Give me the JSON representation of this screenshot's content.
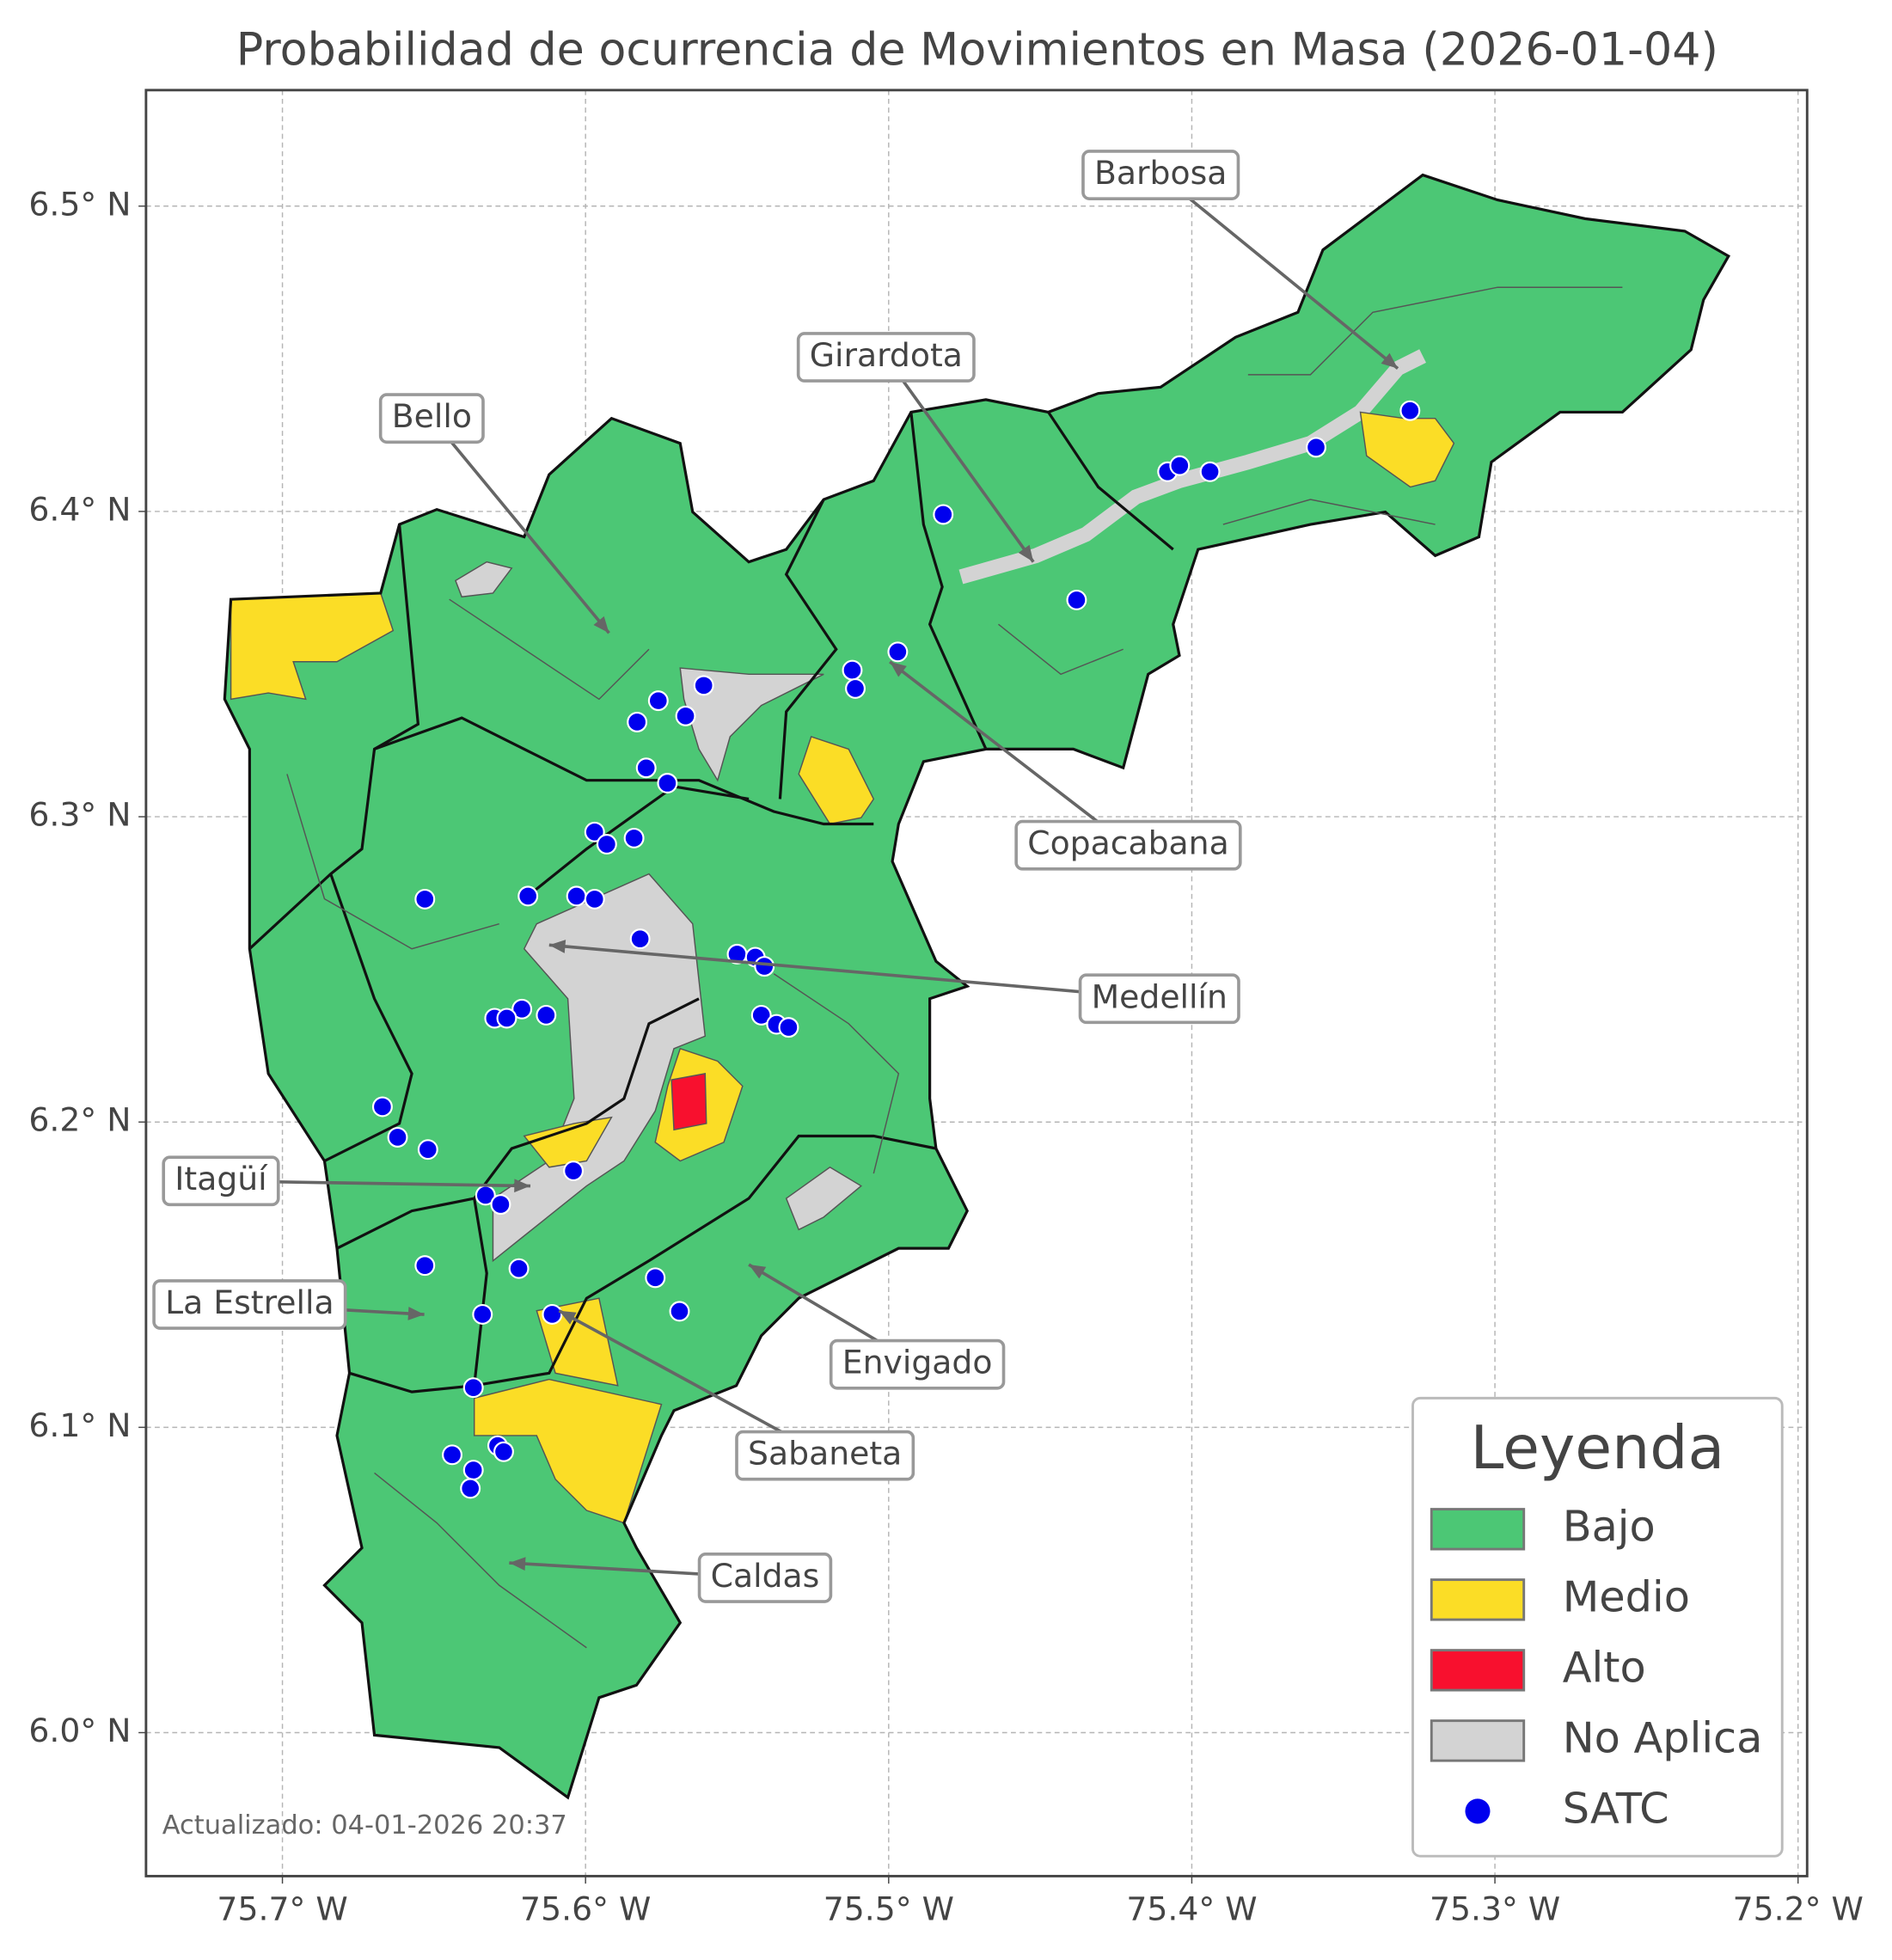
{
  "chart_data": {
    "type": "map",
    "title": "Probabilidad de ocurrencia de Movimientos en Masa (2026-01-04)",
    "footer": "Actualizado: 04-01-2026 20:37",
    "xlim": [
      -75.745,
      -75.197
    ],
    "ylim": [
      5.953,
      6.538
    ],
    "xticks": [
      {
        "value": -75.7,
        "label": "75.7° W"
      },
      {
        "value": -75.6,
        "label": "75.6° W"
      },
      {
        "value": -75.5,
        "label": "75.5° W"
      },
      {
        "value": -75.4,
        "label": "75.4° W"
      },
      {
        "value": -75.3,
        "label": "75.3° W"
      },
      {
        "value": -75.2,
        "label": "75.2° W"
      }
    ],
    "yticks": [
      {
        "value": 6.0,
        "label": "6.0° N"
      },
      {
        "value": 6.1,
        "label": "6.1° N"
      },
      {
        "value": 6.2,
        "label": "6.2° N"
      },
      {
        "value": 6.3,
        "label": "6.3° N"
      },
      {
        "value": 6.4,
        "label": "6.4° N"
      },
      {
        "value": 6.5,
        "label": "6.5° N"
      }
    ],
    "grid": true,
    "legend": {
      "title": "Leyenda",
      "position": "lower right"
    },
    "classes": [
      {
        "name": "Bajo",
        "color": "#4cc775"
      },
      {
        "name": "Medio",
        "color": "#fbdd26"
      },
      {
        "name": "Alto",
        "color": "#f8102e"
      },
      {
        "name": "No Aplica",
        "color": "#d3d3d3"
      }
    ],
    "series": [
      {
        "name": "SATC",
        "color": "#0000ee",
        "x": [
          -75.482,
          -75.408,
          -75.404,
          -75.394,
          -75.359,
          -75.328,
          -75.438,
          -75.497,
          -75.512,
          -75.511,
          -75.561,
          -75.567,
          -75.576,
          -75.583,
          -75.58,
          -75.573,
          -75.597,
          -75.593,
          -75.584,
          -75.653,
          -75.619,
          -75.603,
          -75.597,
          -75.582,
          -75.55,
          -75.544,
          -75.541,
          -75.542,
          -75.537,
          -75.533,
          -75.621,
          -75.63,
          -75.626,
          -75.613,
          -75.667,
          -75.662,
          -75.652,
          -75.604,
          -75.633,
          -75.628,
          -75.622,
          -75.653,
          -75.577,
          -75.569,
          -75.611,
          -75.634,
          -75.637,
          -75.644,
          -75.629,
          -75.627,
          -75.637,
          -75.638
        ],
        "y": [
          6.399,
          6.413,
          6.415,
          6.413,
          6.421,
          6.433,
          6.371,
          6.354,
          6.348,
          6.342,
          6.343,
          6.333,
          6.338,
          6.331,
          6.316,
          6.311,
          6.295,
          6.291,
          6.293,
          6.273,
          6.274,
          6.274,
          6.273,
          6.26,
          6.255,
          6.254,
          6.251,
          6.235,
          6.232,
          6.231,
          6.237,
          6.234,
          6.234,
          6.235,
          6.205,
          6.195,
          6.191,
          6.184,
          6.176,
          6.173,
          6.152,
          6.153,
          6.149,
          6.138,
          6.137,
          6.137,
          6.113,
          6.091,
          6.094,
          6.092,
          6.086,
          6.08
        ]
      }
    ],
    "annotations": [
      "Barbosa",
      "Girardota",
      "Bello",
      "Copacabana",
      "Medellín",
      "Itagüí",
      "La Estrella",
      "Envigado",
      "Sabaneta",
      "Caldas"
    ]
  }
}
